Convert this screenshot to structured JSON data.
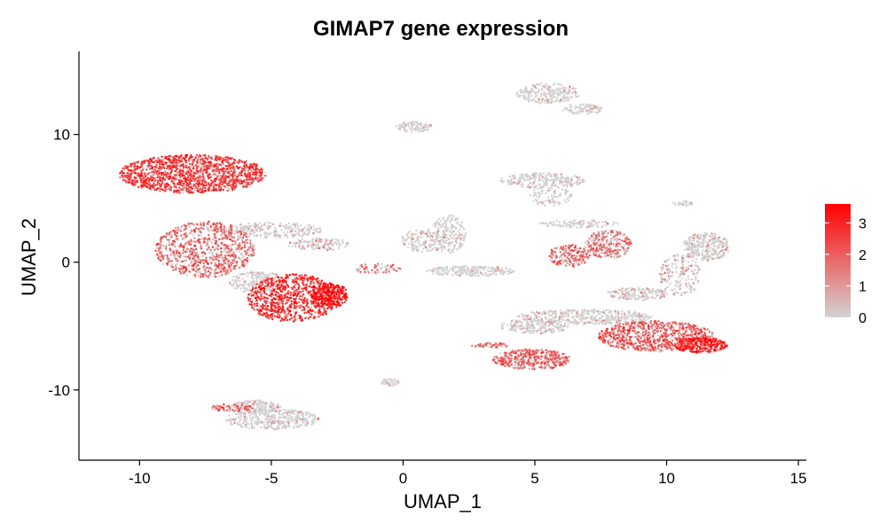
{
  "chart_data": {
    "type": "scatter",
    "title": "GIMAP7 gene expression",
    "xlabel": "UMAP_1",
    "ylabel": "UMAP_2",
    "xlim": [
      -12.3,
      15.3
    ],
    "ylim": [
      -15.5,
      16.5
    ],
    "x_ticks": [
      -10,
      -5,
      0,
      5,
      10,
      15
    ],
    "y_ticks": [
      -10,
      0,
      10
    ],
    "x_tick_labels": [
      "-10",
      "-5",
      "0",
      "5",
      "10",
      "15"
    ],
    "y_tick_labels": [
      "-10",
      "0",
      "10"
    ],
    "grid": false,
    "legend_position": "right",
    "color_scale": {
      "min": 0,
      "max": 3.6,
      "low_color": "#d3d3d3",
      "high_color": "#ff0000",
      "breaks": [
        0,
        1,
        2,
        3
      ],
      "break_labels": [
        "0",
        "1",
        "2",
        "3"
      ]
    },
    "clusters": [
      {
        "cx": -8.0,
        "cy": 6.9,
        "rx": 2.8,
        "ry": 1.5,
        "expression": 2.3,
        "n": 1400
      },
      {
        "cx": -7.5,
        "cy": 1.0,
        "rx": 1.9,
        "ry": 2.2,
        "expression": 1.7,
        "n": 900
      },
      {
        "cx": -4.2,
        "cy": -2.8,
        "rx": 1.7,
        "ry": 1.9,
        "expression": 2.6,
        "n": 800
      },
      {
        "cx": -2.8,
        "cy": -2.6,
        "rx": 0.7,
        "ry": 1.0,
        "expression": 3.0,
        "n": 260
      },
      {
        "cx": -5.5,
        "cy": -1.6,
        "rx": 1.1,
        "ry": 0.9,
        "expression": 0.3,
        "n": 250
      },
      {
        "cx": -5.0,
        "cy": 2.5,
        "rx": 2.0,
        "ry": 0.6,
        "expression": 0.4,
        "n": 250
      },
      {
        "cx": -3.2,
        "cy": 1.4,
        "rx": 1.2,
        "ry": 0.5,
        "expression": 0.6,
        "n": 130
      },
      {
        "cx": -1.0,
        "cy": -0.5,
        "rx": 0.9,
        "ry": 0.4,
        "expression": 1.5,
        "n": 70
      },
      {
        "cx": 0.8,
        "cy": 1.7,
        "rx": 0.9,
        "ry": 0.9,
        "expression": 0.5,
        "n": 140
      },
      {
        "cx": 1.7,
        "cy": 2.2,
        "rx": 0.7,
        "ry": 1.5,
        "expression": 0.2,
        "n": 200
      },
      {
        "cx": 2.6,
        "cy": -0.7,
        "rx": 1.7,
        "ry": 0.4,
        "expression": 0.1,
        "n": 220
      },
      {
        "cx": 5.5,
        "cy": 13.2,
        "rx": 1.2,
        "ry": 0.8,
        "expression": 0.2,
        "n": 240
      },
      {
        "cx": 6.8,
        "cy": 12.0,
        "rx": 0.8,
        "ry": 0.4,
        "expression": 0.2,
        "n": 90
      },
      {
        "cx": 0.4,
        "cy": 10.6,
        "rx": 0.7,
        "ry": 0.4,
        "expression": 0.2,
        "n": 90
      },
      {
        "cx": 5.3,
        "cy": 6.4,
        "rx": 1.6,
        "ry": 0.6,
        "expression": 0.2,
        "n": 240
      },
      {
        "cx": 5.6,
        "cy": 5.2,
        "rx": 0.8,
        "ry": 0.8,
        "expression": 0.1,
        "n": 90
      },
      {
        "cx": 7.8,
        "cy": 1.4,
        "rx": 0.9,
        "ry": 1.1,
        "expression": 1.4,
        "n": 300
      },
      {
        "cx": 6.3,
        "cy": 0.5,
        "rx": 0.8,
        "ry": 0.9,
        "expression": 1.7,
        "n": 200
      },
      {
        "cx": 6.7,
        "cy": 3.0,
        "rx": 1.5,
        "ry": 0.3,
        "expression": 0.3,
        "n": 100
      },
      {
        "cx": 11.5,
        "cy": 1.2,
        "rx": 0.9,
        "ry": 1.1,
        "expression": 0.4,
        "n": 300
      },
      {
        "cx": 10.5,
        "cy": -1.0,
        "rx": 0.8,
        "ry": 1.6,
        "expression": 0.6,
        "n": 180
      },
      {
        "cx": 9.6,
        "cy": -5.8,
        "rx": 2.2,
        "ry": 1.2,
        "expression": 1.8,
        "n": 900
      },
      {
        "cx": 11.3,
        "cy": -6.5,
        "rx": 1.0,
        "ry": 0.6,
        "expression": 2.6,
        "n": 300
      },
      {
        "cx": 6.9,
        "cy": -4.3,
        "rx": 2.6,
        "ry": 0.6,
        "expression": 0.4,
        "n": 420
      },
      {
        "cx": 5.0,
        "cy": -5.0,
        "rx": 1.3,
        "ry": 0.6,
        "expression": 0.3,
        "n": 200
      },
      {
        "cx": 4.9,
        "cy": -7.6,
        "rx": 1.5,
        "ry": 0.8,
        "expression": 1.6,
        "n": 500
      },
      {
        "cx": 3.3,
        "cy": -6.5,
        "rx": 0.7,
        "ry": 0.2,
        "expression": 1.6,
        "n": 60
      },
      {
        "cx": 8.9,
        "cy": -2.5,
        "rx": 1.2,
        "ry": 0.5,
        "expression": 0.5,
        "n": 160
      },
      {
        "cx": -5.0,
        "cy": -12.3,
        "rx": 1.8,
        "ry": 0.8,
        "expression": 0.3,
        "n": 380
      },
      {
        "cx": -5.6,
        "cy": -11.3,
        "rx": 1.0,
        "ry": 0.5,
        "expression": 0.3,
        "n": 150
      },
      {
        "cx": -6.5,
        "cy": -11.4,
        "rx": 0.8,
        "ry": 0.3,
        "expression": 1.8,
        "n": 80
      },
      {
        "cx": -0.5,
        "cy": -9.4,
        "rx": 0.35,
        "ry": 0.3,
        "expression": 0.3,
        "n": 40
      },
      {
        "cx": 10.6,
        "cy": 4.6,
        "rx": 0.4,
        "ry": 0.2,
        "expression": 0.1,
        "n": 30
      }
    ]
  }
}
